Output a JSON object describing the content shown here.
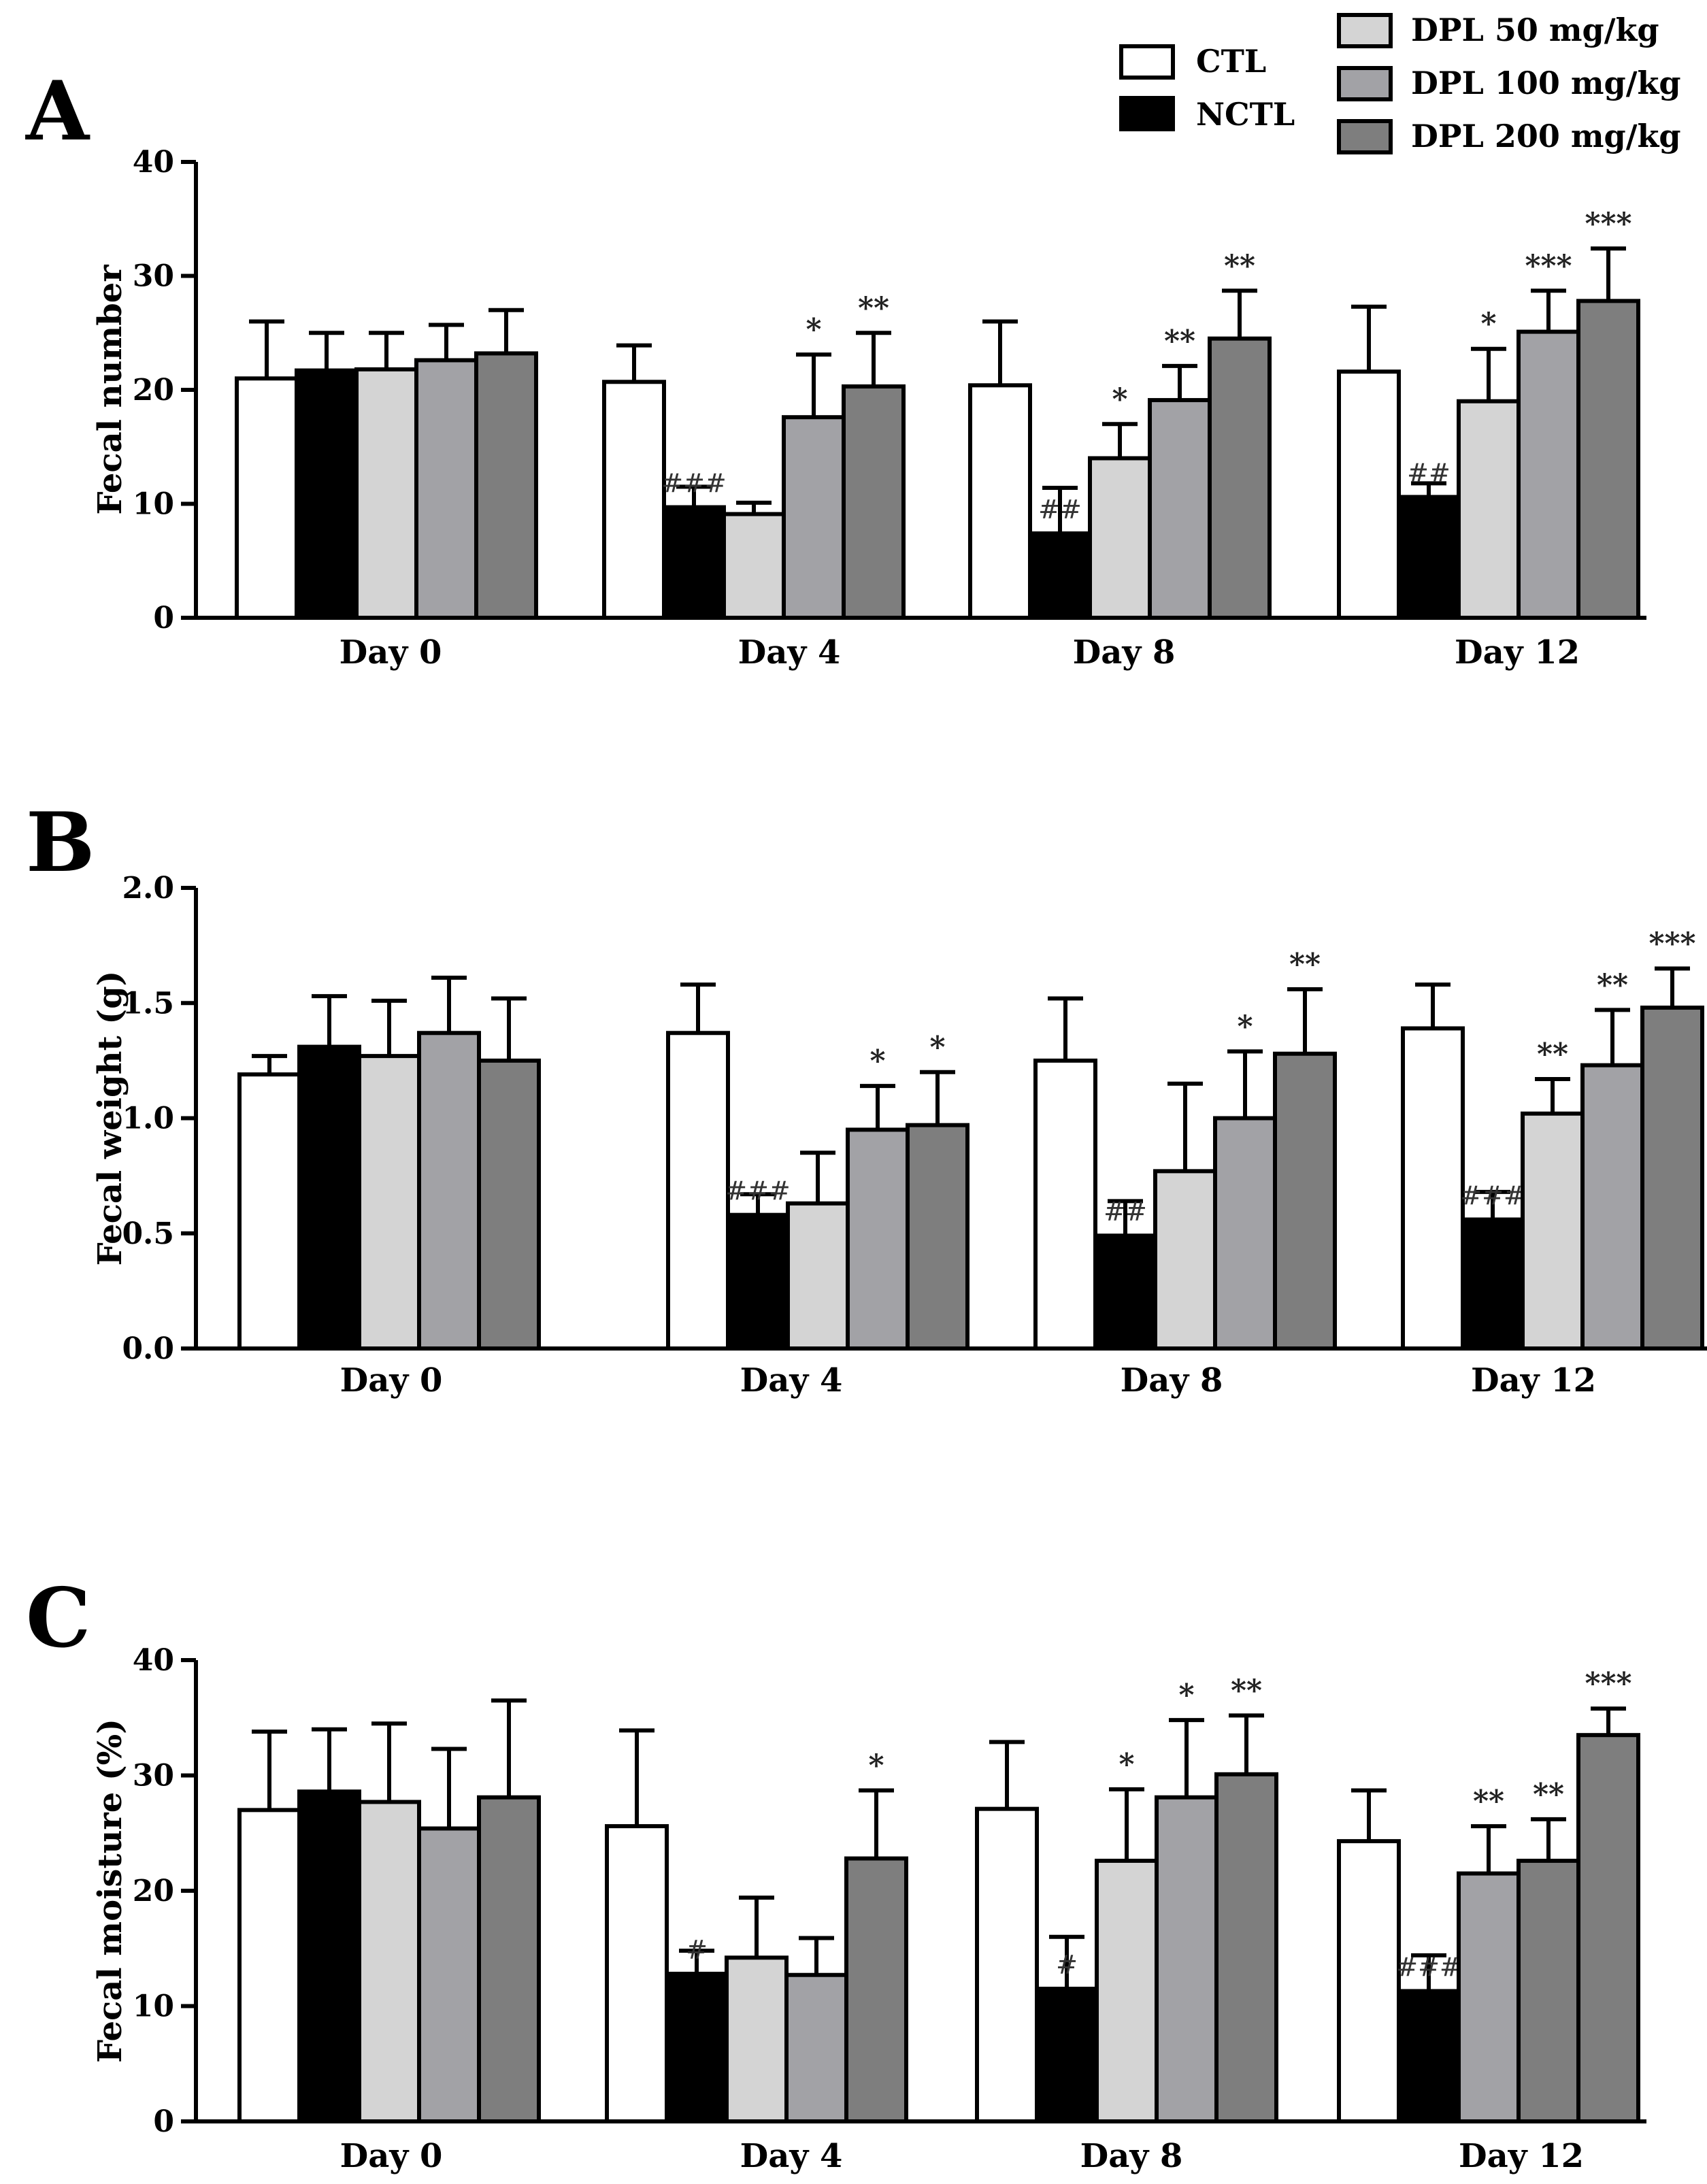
{
  "legend": {
    "items": [
      {
        "label": "CTL",
        "color": "#ffffff"
      },
      {
        "label": "NCTL",
        "color": "#000000"
      },
      {
        "label": "DPL 50 mg/kg",
        "color": "#d4d4d4"
      },
      {
        "label": "DPL 100 mg/kg",
        "color": "#a2a2a6"
      },
      {
        "label": "DPL 200 mg/kg",
        "color": "#7e7e7e"
      }
    ]
  },
  "chart_data": [
    {
      "panel_label": "A",
      "type": "bar",
      "ylabel": "Fecal number",
      "ylim": [
        0,
        40
      ],
      "yticks": [
        "0",
        "10",
        "20",
        "30",
        "40"
      ],
      "categories": [
        "Day 0",
        "Day 4",
        "Day 8",
        "Day 12"
      ],
      "series": [
        {
          "name": "CTL",
          "values": [
            21.0,
            20.7,
            20.4,
            21.6
          ],
          "errors": [
            5.0,
            3.2,
            5.6,
            5.7
          ],
          "annotations": [
            "",
            "",
            "",
            ""
          ]
        },
        {
          "name": "NCTL",
          "values": [
            21.7,
            9.7,
            7.4,
            10.6
          ],
          "errors": [
            3.3,
            1.8,
            4.0,
            1.2
          ],
          "annotations": [
            "",
            "###",
            "##",
            "##"
          ]
        },
        {
          "name": "DPL 50 mg/kg",
          "values": [
            21.8,
            9.1,
            14.0,
            19.0
          ],
          "errors": [
            3.2,
            1.0,
            3.0,
            4.6
          ],
          "annotations": [
            "",
            "",
            "*",
            "*"
          ]
        },
        {
          "name": "DPL 100 mg/kg",
          "values": [
            22.6,
            17.6,
            19.1,
            25.1
          ],
          "errors": [
            3.1,
            5.5,
            3.0,
            3.6
          ],
          "annotations": [
            "",
            "*",
            "**",
            "***"
          ]
        },
        {
          "name": "DPL 200 mg/kg",
          "values": [
            23.2,
            20.3,
            24.5,
            27.8
          ],
          "errors": [
            3.8,
            4.7,
            4.2,
            4.6
          ],
          "annotations": [
            "",
            "**",
            "**",
            "***"
          ]
        }
      ]
    },
    {
      "panel_label": "B",
      "type": "bar",
      "ylabel": "Fecal weight (g)",
      "ylim": [
        0,
        2.0
      ],
      "yticks": [
        "0.0",
        "0.5",
        "1.0",
        "1.5",
        "2.0"
      ],
      "categories": [
        "Day 0",
        "Day 4",
        "Day 8",
        "Day 12"
      ],
      "series": [
        {
          "name": "CTL",
          "values": [
            1.19,
            1.37,
            1.25,
            1.39
          ],
          "errors": [
            0.08,
            0.21,
            0.27,
            0.19
          ],
          "annotations": [
            "",
            "",
            "",
            ""
          ]
        },
        {
          "name": "NCTL",
          "values": [
            1.31,
            0.58,
            0.49,
            0.56
          ],
          "errors": [
            0.22,
            0.09,
            0.15,
            0.12
          ],
          "annotations": [
            "",
            "###",
            "##",
            "###"
          ]
        },
        {
          "name": "DPL 50 mg/kg",
          "values": [
            1.27,
            0.63,
            0.77,
            1.02
          ],
          "errors": [
            0.24,
            0.22,
            0.38,
            0.15
          ],
          "annotations": [
            "",
            "",
            "",
            "**"
          ]
        },
        {
          "name": "DPL 100 mg/kg",
          "values": [
            1.37,
            0.95,
            1.0,
            1.23
          ],
          "errors": [
            0.24,
            0.19,
            0.29,
            0.24
          ],
          "annotations": [
            "",
            "*",
            "*",
            "**"
          ]
        },
        {
          "name": "DPL 200 mg/kg",
          "values": [
            1.25,
            0.97,
            1.28,
            1.48
          ],
          "errors": [
            0.27,
            0.23,
            0.28,
            0.17
          ],
          "annotations": [
            "",
            "*",
            "**",
            "***"
          ]
        }
      ]
    },
    {
      "panel_label": "C",
      "type": "bar",
      "ylabel": "Fecal moisture (%)",
      "ylim": [
        0,
        40
      ],
      "yticks": [
        "0",
        "10",
        "20",
        "30",
        "40"
      ],
      "categories": [
        "Day 0",
        "Day 4",
        "Day 8",
        "Day 12"
      ],
      "series": [
        {
          "name": "CTL",
          "values": [
            27.0,
            25.6,
            27.1,
            24.3
          ],
          "errors": [
            6.8,
            8.3,
            5.8,
            4.4
          ],
          "annotations": [
            "",
            "",
            "",
            ""
          ]
        },
        {
          "name": "NCTL",
          "values": [
            28.6,
            12.8,
            11.5,
            11.3
          ],
          "errors": [
            5.4,
            2.0,
            4.5,
            3.1
          ],
          "annotations": [
            "",
            "#",
            "#",
            "###"
          ]
        },
        {
          "name": "DPL 50 mg/kg",
          "values": [
            27.7,
            14.2,
            22.6,
            null
          ],
          "errors": [
            6.8,
            5.2,
            6.2,
            null
          ],
          "annotations": [
            "",
            "",
            "*",
            ""
          ]
        },
        {
          "name": "DPL 100 mg/kg",
          "values": [
            25.4,
            12.7,
            28.1,
            21.5
          ],
          "errors": [
            6.9,
            3.2,
            6.7,
            4.1
          ],
          "annotations": [
            "",
            "",
            "*",
            "**"
          ]
        },
        {
          "name": "DPL 200 mg/kg",
          "values": [
            28.1,
            22.8,
            30.1,
            22.6
          ],
          "errors": [
            8.4,
            5.9,
            5.1,
            3.6
          ],
          "annotations": [
            "",
            "*",
            "**",
            "**"
          ]
        },
        {
          "name": "DPL 200 mg/kg (Day 12, right)",
          "values": [
            null,
            null,
            null,
            33.5
          ],
          "errors": [
            null,
            null,
            null,
            2.3
          ],
          "annotations": [
            "",
            "",
            "",
            "***"
          ]
        }
      ]
    }
  ]
}
